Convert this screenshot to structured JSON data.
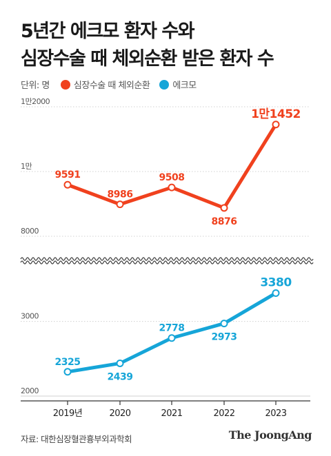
{
  "title_line1": "5년간 에크모 환자 수와",
  "title_line2": "심장수술 때 체외순환 받은 환자 수",
  "legend_unit": "단위: 명",
  "source": "자료: 대한심장혈관흉부외과학회",
  "brand": "The JoongAng",
  "colors": {
    "cpb": "#f0411e",
    "ecmo": "#16a5d8",
    "grid": "#d0d0d0",
    "axis": "#999999"
  },
  "chart_data": {
    "type": "line",
    "categories": [
      "2019년",
      "2020",
      "2021",
      "2022",
      "2023"
    ],
    "series": [
      {
        "name": "심장수술 때 체외순환",
        "values": [
          9591,
          8986,
          9508,
          8876,
          11452
        ],
        "labels": [
          "9591",
          "8986",
          "9508",
          "8876",
          "1만1452"
        ],
        "ylim": [
          8000,
          12000
        ],
        "ticks": [
          8000,
          10000,
          12000
        ],
        "tick_labels": [
          "8000",
          "1만",
          "1만2000"
        ]
      },
      {
        "name": "에크모",
        "values": [
          2325,
          2439,
          2778,
          2973,
          3380
        ],
        "labels": [
          "2325",
          "2439",
          "2778",
          "2973",
          "3380"
        ],
        "ylim": [
          2000,
          3800
        ],
        "ticks": [
          2000,
          3000
        ],
        "tick_labels": [
          "2000",
          "3000"
        ]
      }
    ],
    "grid": true,
    "broken_axis": true
  }
}
